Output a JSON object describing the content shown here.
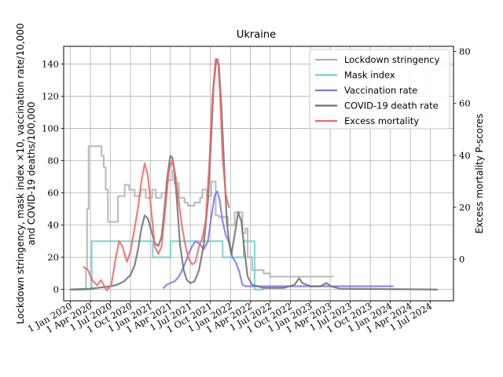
{
  "chart_data": {
    "type": "line",
    "title": "Ukraine",
    "ylabel_left_line1": "Lockdown stringency, mask index ×10, vaccination rate/10,000",
    "ylabel_left_line2": "and COVID-19 deaths/100,000",
    "ylabel_right": "Excess mortality P-scores",
    "xlim": [
      "2019-12-01",
      "2024-10-15"
    ],
    "ylim_left": [
      -7,
      151
    ],
    "ylim_right": [
      -16,
      82
    ],
    "yticks_left": [
      0,
      20,
      40,
      60,
      80,
      100,
      120,
      140
    ],
    "yticks_right": [
      0,
      20,
      40,
      60,
      80
    ],
    "xticks": [
      {
        "date": "2020-01-01",
        "label": "1 Jan 2020"
      },
      {
        "date": "2020-04-01",
        "label": "1 Apr 2020"
      },
      {
        "date": "2020-07-01",
        "label": "1 Jul 2020"
      },
      {
        "date": "2020-10-01",
        "label": "1 Oct 2020"
      },
      {
        "date": "2021-01-01",
        "label": "1 Jan 2021"
      },
      {
        "date": "2021-04-01",
        "label": "1 Apr 2021"
      },
      {
        "date": "2021-07-01",
        "label": "1 Jul 2021"
      },
      {
        "date": "2021-10-01",
        "label": "1 Oct 2021"
      },
      {
        "date": "2022-01-01",
        "label": "1 Jan 2022"
      },
      {
        "date": "2022-04-01",
        "label": "1 Apr 2022"
      },
      {
        "date": "2022-07-01",
        "label": "1 Jul 2022"
      },
      {
        "date": "2022-10-01",
        "label": "1 Oct 2022"
      },
      {
        "date": "2023-01-01",
        "label": "1 Jan 2023"
      },
      {
        "date": "2023-04-01",
        "label": "1 Apr 2023"
      },
      {
        "date": "2023-07-01",
        "label": "1 Jul 2023"
      },
      {
        "date": "2023-10-01",
        "label": "1 Oct 2023"
      },
      {
        "date": "2024-01-01",
        "label": "1 Jan 2024"
      },
      {
        "date": "2024-04-01",
        "label": "1 Apr 2024"
      },
      {
        "date": "2024-07-01",
        "label": "1 Jul 2024"
      }
    ],
    "grid": true,
    "legend_position": "top-right",
    "series": [
      {
        "name": "Lockdown stringency",
        "color": "#b3b3b3",
        "axis": "left",
        "step": true,
        "points": [
          [
            "2020-01-01",
            0
          ],
          [
            "2020-03-02",
            0
          ],
          [
            "2020-03-12",
            13
          ],
          [
            "2020-03-17",
            50
          ],
          [
            "2020-03-24",
            89
          ],
          [
            "2020-05-15",
            89
          ],
          [
            "2020-05-22",
            83
          ],
          [
            "2020-06-01",
            76
          ],
          [
            "2020-06-10",
            62
          ],
          [
            "2020-06-20",
            42
          ],
          [
            "2020-07-25",
            42
          ],
          [
            "2020-08-05",
            58
          ],
          [
            "2020-09-05",
            65
          ],
          [
            "2020-09-25",
            62
          ],
          [
            "2020-10-20",
            58
          ],
          [
            "2020-11-15",
            62
          ],
          [
            "2020-12-10",
            57
          ],
          [
            "2021-01-08",
            62
          ],
          [
            "2021-01-25",
            57
          ],
          [
            "2021-02-20",
            60
          ],
          [
            "2021-03-15",
            68
          ],
          [
            "2021-04-10",
            74
          ],
          [
            "2021-04-20",
            66
          ],
          [
            "2021-05-10",
            57
          ],
          [
            "2021-06-05",
            54
          ],
          [
            "2021-06-20",
            52
          ],
          [
            "2021-07-20",
            54
          ],
          [
            "2021-08-15",
            57
          ],
          [
            "2021-08-25",
            62
          ],
          [
            "2021-09-15",
            58
          ],
          [
            "2021-10-05",
            67
          ],
          [
            "2021-10-25",
            46
          ],
          [
            "2021-11-10",
            45
          ],
          [
            "2021-11-25",
            45
          ],
          [
            "2021-12-20",
            40
          ],
          [
            "2022-01-20",
            48
          ],
          [
            "2022-02-24",
            35
          ],
          [
            "2022-03-10",
            38
          ],
          [
            "2022-03-20",
            20
          ],
          [
            "2022-04-10",
            12
          ],
          [
            "2022-06-01",
            10
          ],
          [
            "2022-07-01",
            8
          ],
          [
            "2023-04-15",
            8
          ]
        ]
      },
      {
        "name": "Mask index",
        "color": "#6dd4cf",
        "axis": "left",
        "step": true,
        "points": [
          [
            "2020-01-01",
            0
          ],
          [
            "2020-04-06",
            0
          ],
          [
            "2020-04-07",
            30
          ],
          [
            "2021-01-10",
            30
          ],
          [
            "2021-01-11",
            20
          ],
          [
            "2021-04-01",
            20
          ],
          [
            "2021-04-02",
            30
          ],
          [
            "2021-11-25",
            30
          ],
          [
            "2021-11-26",
            20
          ],
          [
            "2022-03-01",
            20
          ],
          [
            "2022-03-02",
            30
          ],
          [
            "2022-04-20",
            30
          ],
          [
            "2022-04-21",
            0
          ],
          [
            "2022-05-31",
            0
          ]
        ]
      },
      {
        "name": "Vaccination rate",
        "color": "#7777ee",
        "axis": "left",
        "step": false,
        "points": [
          [
            "2021-03-01",
            1
          ],
          [
            "2021-03-15",
            3
          ],
          [
            "2021-04-01",
            4
          ],
          [
            "2021-04-20",
            5
          ],
          [
            "2021-05-10",
            8
          ],
          [
            "2021-06-01",
            14
          ],
          [
            "2021-06-20",
            21
          ],
          [
            "2021-07-10",
            27
          ],
          [
            "2021-07-25",
            30
          ],
          [
            "2021-08-15",
            28
          ],
          [
            "2021-09-01",
            25
          ],
          [
            "2021-09-20",
            30
          ],
          [
            "2021-10-05",
            45
          ],
          [
            "2021-10-20",
            58
          ],
          [
            "2021-11-01",
            61
          ],
          [
            "2021-11-12",
            56
          ],
          [
            "2021-11-25",
            43
          ],
          [
            "2021-12-10",
            34
          ],
          [
            "2021-12-25",
            29
          ],
          [
            "2022-01-10",
            20
          ],
          [
            "2022-01-25",
            17
          ],
          [
            "2022-02-10",
            11
          ],
          [
            "2022-02-24",
            3
          ],
          [
            "2022-03-10",
            2
          ],
          [
            "2022-06-01",
            2
          ],
          [
            "2023-01-01",
            2
          ],
          [
            "2023-09-01",
            2
          ],
          [
            "2024-01-12",
            2
          ]
        ]
      },
      {
        "name": "COVID-19 death rate",
        "color": "#6e6e6e",
        "axis": "left",
        "step": false,
        "points": [
          [
            "2020-01-01",
            0
          ],
          [
            "2020-04-01",
            0.5
          ],
          [
            "2020-05-01",
            1
          ],
          [
            "2020-06-01",
            1.5
          ],
          [
            "2020-07-01",
            2
          ],
          [
            "2020-08-01",
            3
          ],
          [
            "2020-09-01",
            5
          ],
          [
            "2020-10-01",
            9
          ],
          [
            "2020-10-20",
            15
          ],
          [
            "2020-11-05",
            25
          ],
          [
            "2020-11-20",
            38
          ],
          [
            "2020-12-05",
            46
          ],
          [
            "2020-12-20",
            44
          ],
          [
            "2021-01-05",
            36
          ],
          [
            "2021-01-20",
            29
          ],
          [
            "2021-02-05",
            27
          ],
          [
            "2021-02-20",
            33
          ],
          [
            "2021-03-05",
            50
          ],
          [
            "2021-03-20",
            72
          ],
          [
            "2021-04-01",
            83
          ],
          [
            "2021-04-10",
            82
          ],
          [
            "2021-04-20",
            74
          ],
          [
            "2021-05-01",
            55
          ],
          [
            "2021-05-15",
            28
          ],
          [
            "2021-06-01",
            12
          ],
          [
            "2021-06-15",
            6
          ],
          [
            "2021-07-01",
            4
          ],
          [
            "2021-07-20",
            5
          ],
          [
            "2021-08-10",
            12
          ],
          [
            "2021-09-01",
            28
          ],
          [
            "2021-09-20",
            55
          ],
          [
            "2021-10-05",
            95
          ],
          [
            "2021-10-15",
            125
          ],
          [
            "2021-10-28",
            143
          ],
          [
            "2021-11-08",
            140
          ],
          [
            "2021-11-20",
            115
          ],
          [
            "2021-12-01",
            82
          ],
          [
            "2021-12-15",
            42
          ],
          [
            "2021-12-25",
            30
          ],
          [
            "2022-01-05",
            22
          ],
          [
            "2022-01-20",
            34
          ],
          [
            "2022-02-05",
            48
          ],
          [
            "2022-02-20",
            42
          ],
          [
            "2022-03-05",
            25
          ],
          [
            "2022-03-20",
            8
          ],
          [
            "2022-04-10",
            3
          ],
          [
            "2022-06-01",
            1
          ],
          [
            "2022-09-01",
            1
          ],
          [
            "2022-10-20",
            3
          ],
          [
            "2022-11-10",
            7
          ],
          [
            "2022-11-25",
            4
          ],
          [
            "2023-01-01",
            2
          ],
          [
            "2023-02-15",
            2
          ],
          [
            "2023-03-15",
            4
          ],
          [
            "2023-04-05",
            2
          ],
          [
            "2023-05-15",
            0.5
          ],
          [
            "2024-08-01",
            0
          ]
        ]
      },
      {
        "name": "Excess mortality",
        "color": "#ee6666",
        "axis": "right",
        "step": false,
        "points": [
          [
            "2020-03-01",
            -3
          ],
          [
            "2020-03-20",
            -4
          ],
          [
            "2020-04-10",
            -8
          ],
          [
            "2020-05-01",
            -10
          ],
          [
            "2020-05-20",
            -8
          ],
          [
            "2020-06-15",
            -12
          ],
          [
            "2020-07-05",
            -10
          ],
          [
            "2020-07-25",
            0
          ],
          [
            "2020-08-10",
            7
          ],
          [
            "2020-08-25",
            5
          ],
          [
            "2020-09-15",
            -1
          ],
          [
            "2020-10-01",
            3
          ],
          [
            "2020-10-20",
            12
          ],
          [
            "2020-11-05",
            20
          ],
          [
            "2020-11-20",
            30
          ],
          [
            "2020-12-05",
            37
          ],
          [
            "2020-12-20",
            32
          ],
          [
            "2021-01-05",
            18
          ],
          [
            "2021-01-20",
            5
          ],
          [
            "2021-02-05",
            2
          ],
          [
            "2021-02-20",
            5
          ],
          [
            "2021-03-10",
            20
          ],
          [
            "2021-03-25",
            34
          ],
          [
            "2021-04-10",
            38
          ],
          [
            "2021-04-25",
            32
          ],
          [
            "2021-05-10",
            22
          ],
          [
            "2021-05-25",
            12
          ],
          [
            "2021-06-10",
            5
          ],
          [
            "2021-06-25",
            0
          ],
          [
            "2021-07-10",
            -2
          ],
          [
            "2021-07-25",
            -1
          ],
          [
            "2021-08-10",
            5
          ],
          [
            "2021-08-25",
            8
          ],
          [
            "2021-09-10",
            15
          ],
          [
            "2021-09-25",
            35
          ],
          [
            "2021-10-10",
            62
          ],
          [
            "2021-10-25",
            77
          ],
          [
            "2021-11-05",
            77
          ],
          [
            "2021-11-15",
            62
          ],
          [
            "2021-11-25",
            40
          ],
          [
            "2021-12-10",
            25
          ],
          [
            "2021-12-25",
            20
          ]
        ]
      }
    ]
  }
}
